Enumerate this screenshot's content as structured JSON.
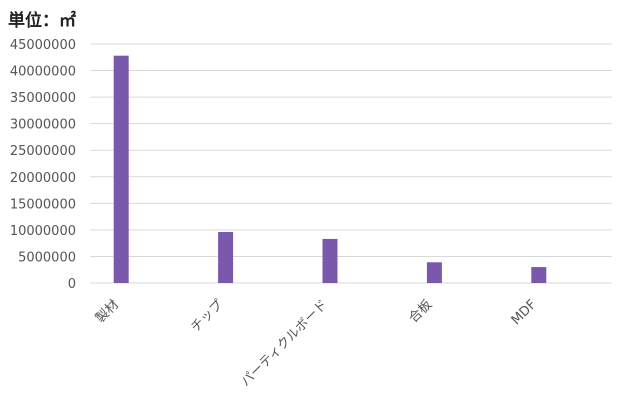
{
  "unit_label": "単位：㎡",
  "colors": {
    "bar": "#7a58ac",
    "grid": "#d9d9d9",
    "text": "#555555"
  },
  "chart_data": {
    "type": "bar",
    "title": "",
    "xlabel": "",
    "ylabel": "",
    "ylim": [
      0,
      45000000
    ],
    "y_ticks": [
      0,
      5000000,
      10000000,
      15000000,
      20000000,
      25000000,
      30000000,
      35000000,
      40000000,
      45000000
    ],
    "grid": true,
    "legend": "none",
    "categories": [
      "製材",
      "チップ",
      "パーティクルボード",
      "合板",
      "MDF"
    ],
    "values": [
      42800000,
      9600000,
      8300000,
      3900000,
      3000000
    ]
  }
}
